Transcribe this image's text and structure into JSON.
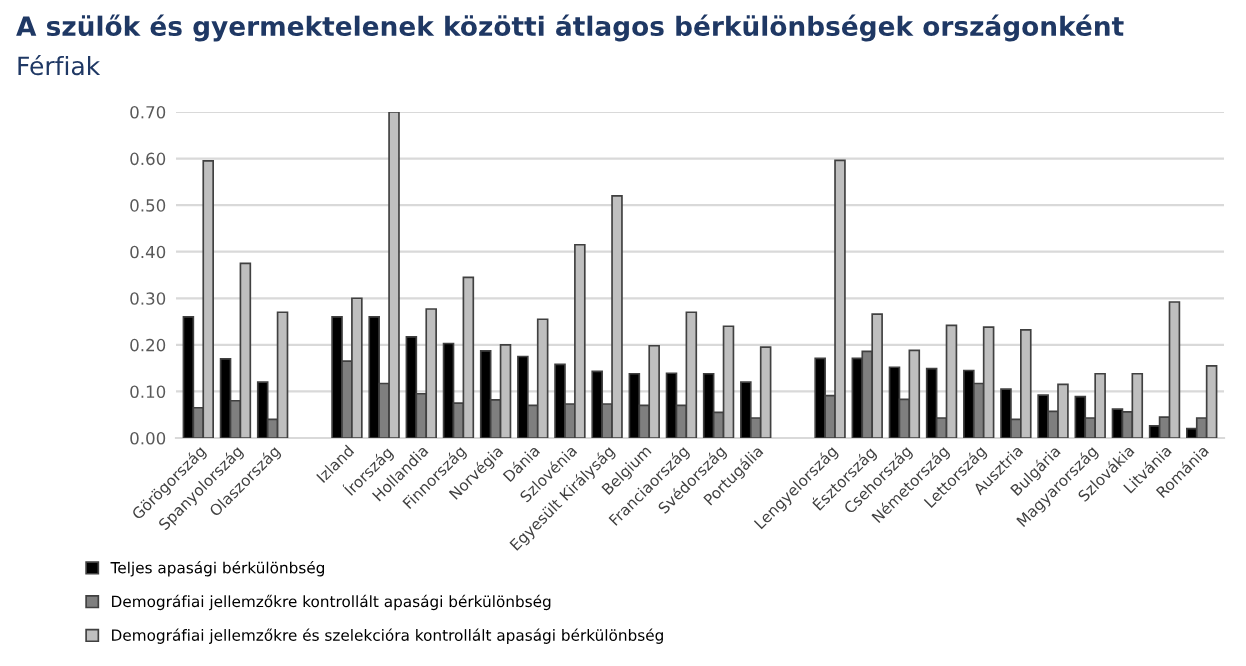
{
  "chart_data": {
    "type": "bar",
    "title": "A szülők és gyermektelenek közötti átlagos bérkülönbségek országonként",
    "subtitle": "Férfiak",
    "categories": [
      "Görögország",
      "Spanyolország",
      "Olaszország",
      null,
      "Izland",
      "Írország",
      "Hollandia",
      "Finnország",
      "Norvégia",
      "Dánia",
      "Szlovénia",
      "Egyesült Királyság",
      "Belgium",
      "Franciaország",
      "Svédország",
      "Portugália",
      null,
      "Lengyelország",
      "Észtország",
      "Csehország",
      "Németország",
      "Lettország",
      "Ausztria",
      "Bulgária",
      "Magyarország",
      "Szlovákia",
      "Litvánia",
      "Románia"
    ],
    "series": [
      {
        "name": "Teljes apasági bérkülönbség",
        "color": "#000000",
        "values": [
          0.26,
          0.17,
          0.12,
          null,
          0.26,
          0.26,
          0.217,
          0.203,
          0.187,
          0.175,
          0.158,
          0.143,
          0.138,
          0.139,
          0.138,
          0.12,
          null,
          0.171,
          0.171,
          0.152,
          0.149,
          0.145,
          0.105,
          0.092,
          0.089,
          0.062,
          0.026,
          0.02
        ]
      },
      {
        "name": "Demográfiai jellemzőkre kontrollált apasági bérkülönbség",
        "color": "#7f7f7f",
        "values": [
          0.065,
          0.08,
          0.04,
          null,
          0.165,
          0.117,
          0.095,
          0.075,
          0.082,
          0.07,
          0.073,
          0.073,
          0.07,
          0.07,
          0.055,
          0.043,
          null,
          0.091,
          0.186,
          0.083,
          0.043,
          0.117,
          0.04,
          0.057,
          0.043,
          0.056,
          0.045,
          0.043
        ]
      },
      {
        "name": "Demográfiai jellemzőkre és szelekcióra kontrollált apasági bérkülönbség",
        "color": "#bfbfbf",
        "values": [
          0.595,
          0.375,
          0.27,
          null,
          0.3,
          0.7,
          0.277,
          0.345,
          0.2,
          0.255,
          0.415,
          0.52,
          0.198,
          0.27,
          0.24,
          0.195,
          null,
          0.596,
          0.266,
          0.188,
          0.242,
          0.238,
          0.232,
          0.115,
          0.138,
          0.138,
          0.292,
          0.155
        ]
      }
    ],
    "ylim": [
      0,
      0.7
    ],
    "yticks": [
      {
        "value": 0,
        "label": "0.00"
      },
      {
        "value": 0.1,
        "label": "0.10"
      },
      {
        "value": 0.2,
        "label": "0.20"
      },
      {
        "value": 0.3,
        "label": "0.30"
      },
      {
        "value": 0.4,
        "label": "0.40"
      },
      {
        "value": 0.5,
        "label": "0.50"
      },
      {
        "value": 0.6,
        "label": "0.60"
      },
      {
        "value": 0.7,
        "label": "0.70"
      }
    ],
    "grid": "y",
    "legend": "bottom left"
  }
}
